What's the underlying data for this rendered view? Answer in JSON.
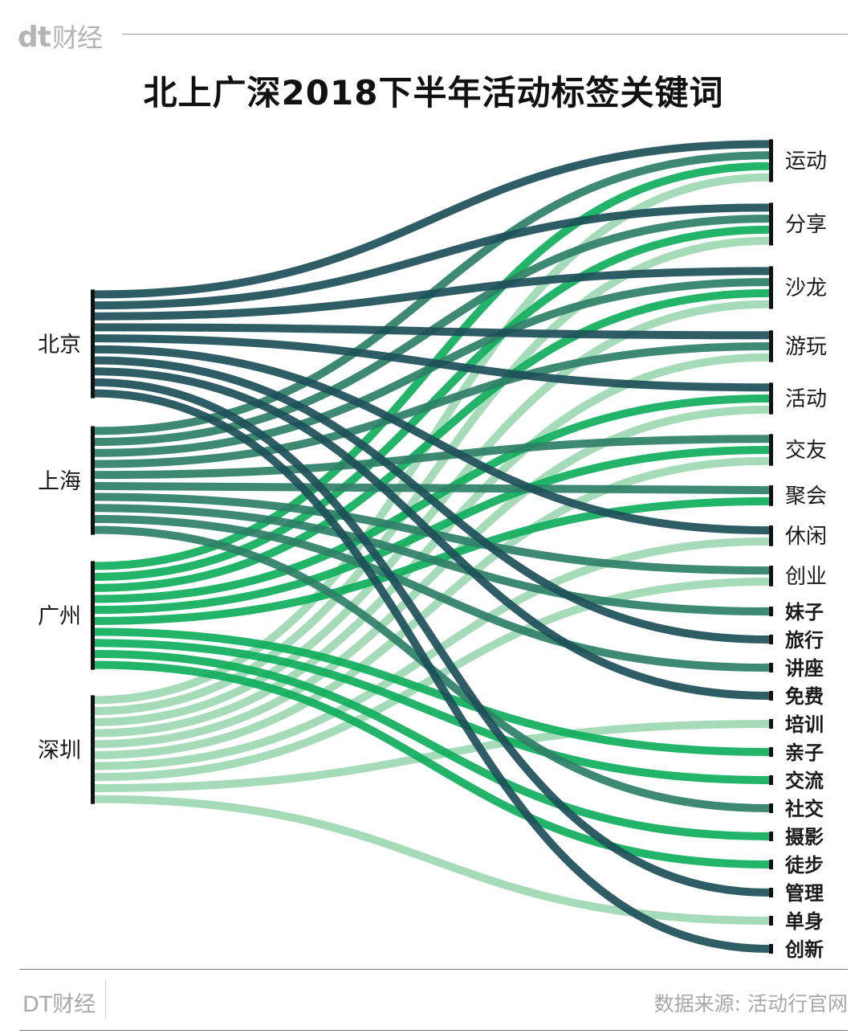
{
  "brand": {
    "logo_mark": "dt",
    "logo_text": "财经",
    "footer_text": "DT财经"
  },
  "title": "北上广深2018下半年活动标签关键词",
  "source": "数据来源: 活动行官网",
  "colors": {
    "北京": "#1d4f59",
    "上海": "#2e7f66",
    "广州": "#0fae5b",
    "深圳": "#9dd8b3"
  },
  "chart_data": {
    "type": "sankey",
    "title": "北上广深2018下半年活动标签关键词",
    "sources": [
      "北京",
      "上海",
      "广州",
      "深圳"
    ],
    "targets": [
      "运动",
      "分享",
      "沙龙",
      "游玩",
      "活动",
      "交友",
      "聚会",
      "休闲",
      "创业",
      "妹子",
      "旅行",
      "讲座",
      "免费",
      "培训",
      "亲子",
      "交流",
      "社交",
      "摄影",
      "徒步",
      "管理",
      "单身",
      "创新"
    ],
    "flows": [
      {
        "source": "北京",
        "targets": [
          "运动",
          "分享",
          "沙龙",
          "游玩",
          "活动",
          "休闲",
          "旅行",
          "免费",
          "管理",
          "创新"
        ]
      },
      {
        "source": "上海",
        "targets": [
          "运动",
          "分享",
          "沙龙",
          "游玩",
          "交友",
          "聚会",
          "创业",
          "妹子",
          "讲座",
          "社交"
        ]
      },
      {
        "source": "广州",
        "targets": [
          "运动",
          "分享",
          "沙龙",
          "活动",
          "交友",
          "聚会",
          "亲子",
          "交流",
          "摄影",
          "徒步"
        ]
      },
      {
        "source": "深圳",
        "targets": [
          "运动",
          "分享",
          "沙龙",
          "游玩",
          "活动",
          "交友",
          "休闲",
          "创业",
          "培训",
          "单身"
        ]
      }
    ]
  }
}
